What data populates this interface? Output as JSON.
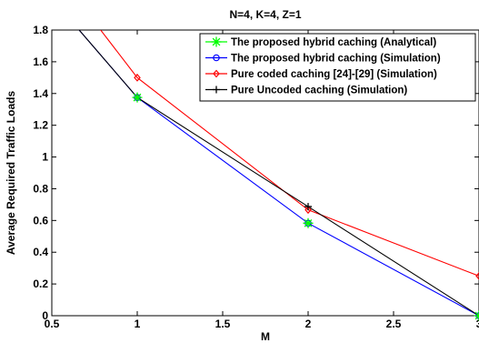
{
  "chart_data": {
    "type": "line",
    "title": "N=4, K=4, Z=1",
    "xlabel": "M",
    "ylabel": "Average Required Traffic Loads",
    "xlim": [
      0.5,
      3
    ],
    "ylim": [
      0,
      1.8
    ],
    "xticks": [
      "0.5",
      "1",
      "1.5",
      "2",
      "2.5",
      "3"
    ],
    "yticks": [
      "0",
      "0.2",
      "0.4",
      "0.6",
      "0.8",
      "1",
      "1.2",
      "1.4",
      "1.6",
      "1.8"
    ],
    "grid": false,
    "legend_position": "top-right",
    "series": [
      {
        "name": "The proposed hybrid caching (Analytical)",
        "color": "#00ff00",
        "marker": "asterisk",
        "x": [
          1,
          2,
          3
        ],
        "y": [
          1.375,
          0.583,
          0
        ]
      },
      {
        "name": "The proposed hybrid caching (Simulation)",
        "color": "#0000ff",
        "marker": "circle",
        "x": [
          0.5,
          1,
          2,
          3
        ],
        "y": [
          2.0,
          1.375,
          0.583,
          0
        ]
      },
      {
        "name": "Pure coded caching [24]-[29] (Simulation)",
        "color": "#ff0000",
        "marker": "diamond",
        "x": [
          0.5,
          1,
          2,
          3
        ],
        "y": [
          2.2,
          1.5,
          0.667,
          0.25
        ]
      },
      {
        "name": "Pure Uncoded caching (Simulation)",
        "color": "#000000",
        "marker": "plus",
        "x": [
          0.5,
          1,
          2,
          3
        ],
        "y": [
          2.0,
          1.375,
          0.6875,
          0
        ]
      }
    ]
  }
}
